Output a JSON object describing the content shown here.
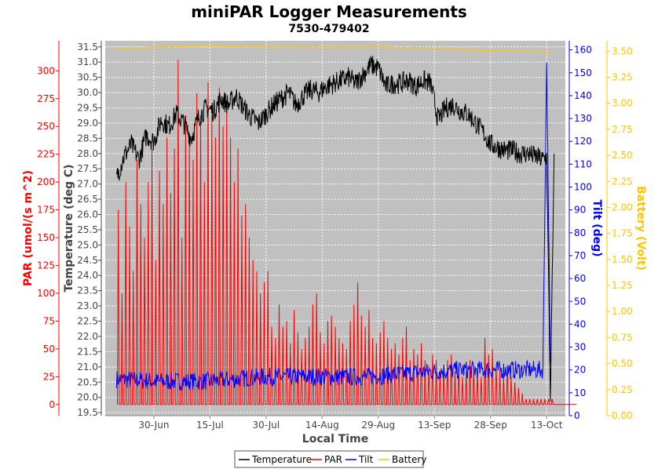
{
  "colors": {
    "temperature": "#000000",
    "par": "#ff0000",
    "tilt": "#0000ff",
    "battery": "#ffc400",
    "plot_bg": "#c0c0c0",
    "grid": "#ffffff"
  },
  "chart_data": {
    "type": "line",
    "title": "miniPAR Logger Measurements",
    "subtitle": "7530-479402",
    "xlabel": "Local Time",
    "x_ticks": [
      "30-Jun",
      "15-Jul",
      "30-Jul",
      "14-Aug",
      "29-Aug",
      "13-Sep",
      "28-Sep",
      "13-Oct"
    ],
    "x_range": [
      "2019-06-17",
      "2019-10-18"
    ],
    "grid": true,
    "legend_position": "bottom",
    "axes": {
      "par": {
        "label": "PAR (umol/(s m^2)",
        "range": [
          -10,
          327
        ],
        "ticks": [
          "0",
          "25",
          "50",
          "75",
          "100",
          "125",
          "150",
          "175",
          "200",
          "225",
          "250",
          "275",
          "300"
        ]
      },
      "temperature": {
        "label": "Temperature (deg C)",
        "range": [
          19.4,
          31.7
        ],
        "ticks": [
          "19.5",
          "20.0",
          "20.5",
          "21.0",
          "21.5",
          "22.0",
          "22.5",
          "23.0",
          "23.5",
          "24.0",
          "24.5",
          "25.0",
          "25.5",
          "26.0",
          "26.5",
          "27.0",
          "27.5",
          "28.0",
          "28.5",
          "29.0",
          "29.5",
          "30.0",
          "30.5",
          "31.0",
          "31.5"
        ]
      },
      "tilt": {
        "label": "Tilt (deg)",
        "range": [
          0,
          164
        ],
        "ticks": [
          "0",
          "10",
          "20",
          "30",
          "40",
          "50",
          "60",
          "70",
          "80",
          "90",
          "100",
          "110",
          "120",
          "130",
          "140",
          "150",
          "160"
        ]
      },
      "battery": {
        "label": "Battery (Volt)",
        "range": [
          0,
          3.6
        ],
        "ticks": [
          "0.00",
          "0.25",
          "0.50",
          "0.75",
          "1.00",
          "1.25",
          "1.50",
          "1.75",
          "2.00",
          "2.25",
          "2.50",
          "2.75",
          "3.00",
          "3.25",
          "3.50"
        ]
      }
    },
    "series": [
      {
        "name": "Temperature",
        "axis": "temperature",
        "points": [
          [
            "2019-06-20",
            27.2
          ],
          [
            "2019-06-22",
            27.9
          ],
          [
            "2019-06-24",
            28.3
          ],
          [
            "2019-06-26",
            27.8
          ],
          [
            "2019-06-28",
            28.6
          ],
          [
            "2019-06-30",
            28.4
          ],
          [
            "2019-07-02",
            29.1
          ],
          [
            "2019-07-04",
            28.9
          ],
          [
            "2019-07-06",
            29.3
          ],
          [
            "2019-07-08",
            29.0
          ],
          [
            "2019-07-10",
            28.5
          ],
          [
            "2019-07-12",
            29.2
          ],
          [
            "2019-07-14",
            29.5
          ],
          [
            "2019-07-16",
            29.4
          ],
          [
            "2019-07-18",
            29.8
          ],
          [
            "2019-07-20",
            29.6
          ],
          [
            "2019-07-22",
            29.9
          ],
          [
            "2019-07-24",
            29.5
          ],
          [
            "2019-07-26",
            29.2
          ],
          [
            "2019-07-28",
            29.0
          ],
          [
            "2019-07-30",
            29.3
          ],
          [
            "2019-08-01",
            29.6
          ],
          [
            "2019-08-03",
            29.8
          ],
          [
            "2019-08-05",
            30.0
          ],
          [
            "2019-08-07",
            29.6
          ],
          [
            "2019-08-09",
            29.9
          ],
          [
            "2019-08-11",
            30.1
          ],
          [
            "2019-08-13",
            30.0
          ],
          [
            "2019-08-15",
            30.2
          ],
          [
            "2019-08-17",
            30.3
          ],
          [
            "2019-08-19",
            30.4
          ],
          [
            "2019-08-21",
            30.5
          ],
          [
            "2019-08-23",
            30.3
          ],
          [
            "2019-08-25",
            30.6
          ],
          [
            "2019-08-27",
            30.9
          ],
          [
            "2019-08-29",
            30.8
          ],
          [
            "2019-08-31",
            30.2
          ],
          [
            "2019-09-02",
            30.3
          ],
          [
            "2019-09-04",
            30.3
          ],
          [
            "2019-09-06",
            30.4
          ],
          [
            "2019-09-08",
            30.2
          ],
          [
            "2019-09-10",
            30.4
          ],
          [
            "2019-09-12",
            30.3
          ],
          [
            "2019-09-14",
            29.1
          ],
          [
            "2019-09-16",
            29.5
          ],
          [
            "2019-09-18",
            29.6
          ],
          [
            "2019-09-20",
            29.4
          ],
          [
            "2019-09-22",
            29.3
          ],
          [
            "2019-09-24",
            29.0
          ],
          [
            "2019-09-26",
            28.7
          ],
          [
            "2019-09-28",
            28.3
          ],
          [
            "2019-09-30",
            28.2
          ],
          [
            "2019-10-02",
            28.1
          ],
          [
            "2019-10-04",
            28.1
          ],
          [
            "2019-10-06",
            28.0
          ],
          [
            "2019-10-08",
            28.0
          ],
          [
            "2019-10-10",
            27.9
          ],
          [
            "2019-10-12",
            27.8
          ],
          [
            "2019-10-13",
            27.9
          ],
          [
            "2019-10-14",
            20.0
          ],
          [
            "2019-10-15",
            27.7
          ]
        ]
      },
      {
        "name": "PAR",
        "axis": "par",
        "daily_peaks": [
          175,
          100,
          200,
          160,
          120,
          220,
          180,
          150,
          200,
          230,
          130,
          210,
          180,
          240,
          190,
          230,
          310,
          150,
          260,
          240,
          220,
          280,
          260,
          200,
          290,
          260,
          240,
          285,
          250,
          270,
          240,
          200,
          230,
          170,
          180,
          150,
          130,
          120,
          100,
          110,
          120,
          70,
          60,
          90,
          70,
          75,
          55,
          85,
          65,
          50,
          60,
          70,
          90,
          100,
          65,
          55,
          75,
          80,
          70,
          60,
          55,
          50,
          75,
          90,
          110,
          80,
          70,
          85,
          60,
          55,
          65,
          75,
          60,
          50,
          55,
          45,
          60,
          70,
          40,
          50,
          45,
          55,
          40,
          35,
          45,
          40,
          30,
          35,
          40,
          45,
          30,
          35,
          25,
          30,
          40,
          35,
          30,
          25,
          60,
          45,
          50,
          35,
          30,
          25,
          35,
          25,
          20,
          15,
          10,
          5,
          5,
          5,
          5,
          5,
          5,
          5,
          5,
          0,
          0,
          0,
          0,
          0,
          0
        ]
      },
      {
        "name": "Tilt",
        "axis": "tilt",
        "points": [
          [
            "2019-06-20",
            16
          ],
          [
            "2019-07-01",
            15
          ],
          [
            "2019-07-15",
            15
          ],
          [
            "2019-07-29",
            17
          ],
          [
            "2019-08-12",
            17
          ],
          [
            "2019-08-26",
            17
          ],
          [
            "2019-09-09",
            19
          ],
          [
            "2019-09-20",
            20
          ],
          [
            "2019-10-01",
            20
          ],
          [
            "2019-10-12",
            20
          ],
          [
            "2019-10-13",
            155
          ],
          [
            "2019-10-14",
            20
          ]
        ]
      },
      {
        "name": "Battery",
        "axis": "battery",
        "points": [
          [
            "2019-06-20",
            3.52
          ],
          [
            "2019-07-01",
            3.54
          ],
          [
            "2019-07-15",
            3.55
          ],
          [
            "2019-08-01",
            3.54
          ],
          [
            "2019-08-15",
            3.54
          ],
          [
            "2019-08-29",
            3.54
          ],
          [
            "2019-09-15",
            3.53
          ],
          [
            "2019-09-25",
            3.5
          ],
          [
            "2019-10-05",
            3.5
          ],
          [
            "2019-10-14",
            3.49
          ]
        ]
      }
    ]
  }
}
